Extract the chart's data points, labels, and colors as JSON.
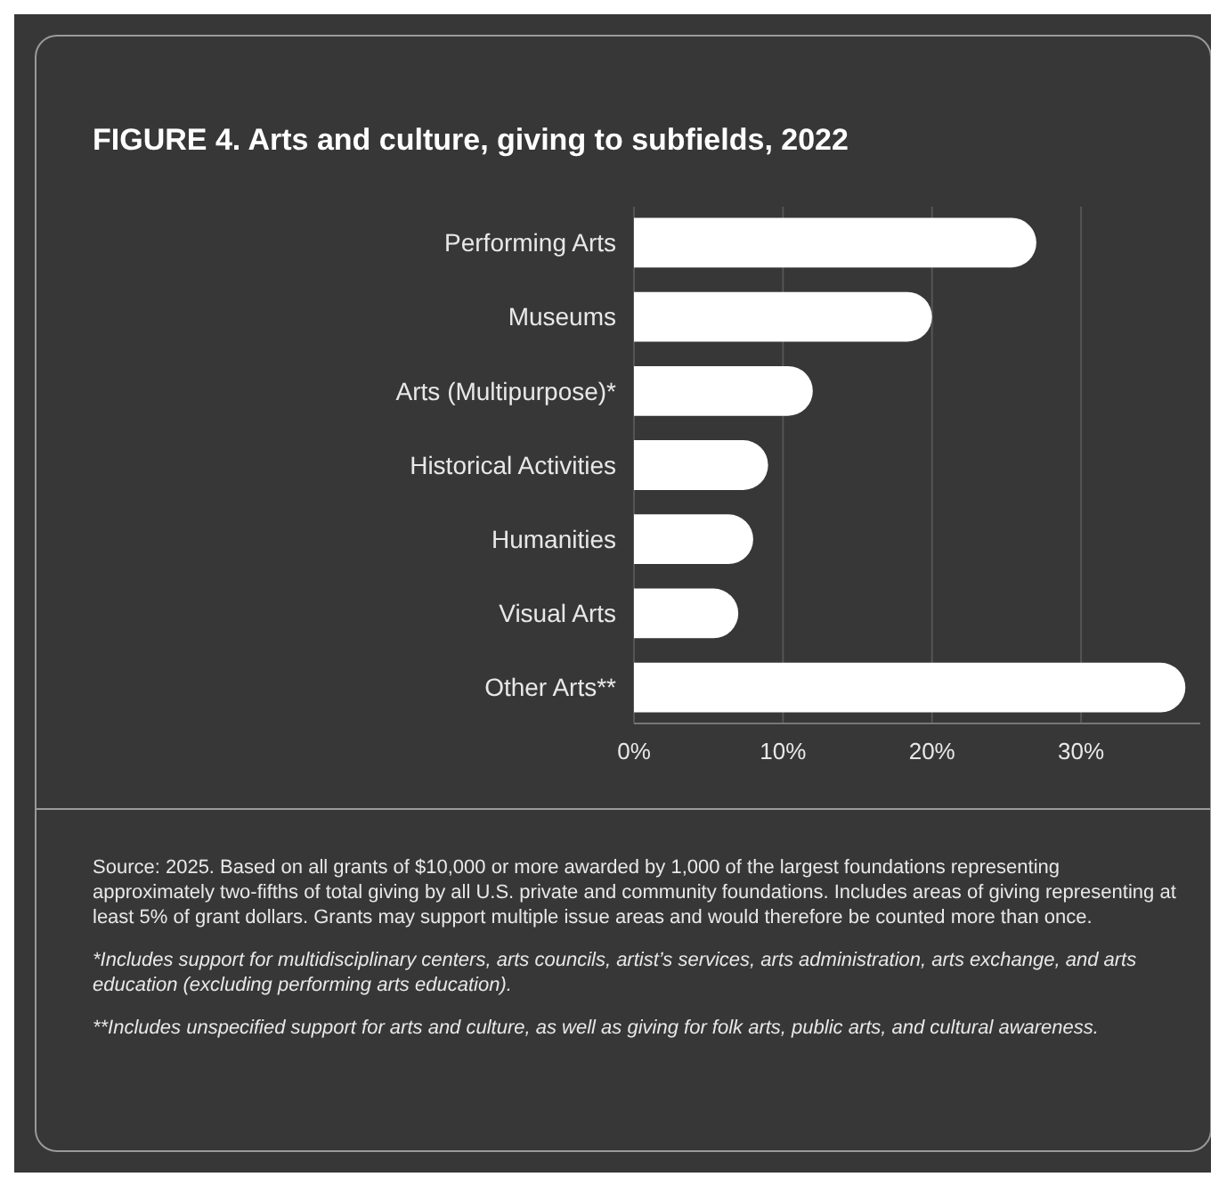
{
  "chart_data": {
    "type": "bar",
    "orientation": "horizontal",
    "title": "FIGURE 4. Arts and culture, giving to subfields, 2022",
    "categories": [
      "Performing Arts",
      "Museums",
      "Arts (Multipurpose)*",
      "Historical Activities",
      "Humanities",
      "Visual Arts",
      "Other Arts**"
    ],
    "values": [
      27,
      20,
      12,
      9,
      8,
      7,
      37
    ],
    "color": "#ffffff",
    "xlim": [
      0,
      38
    ],
    "xticks": [
      {
        "value": 0,
        "label": "0%"
      },
      {
        "value": 10,
        "label": "10%"
      },
      {
        "value": 20,
        "label": "20%"
      },
      {
        "value": 30,
        "label": "30%"
      }
    ],
    "grid": "x",
    "annotations": [
      "Source: 2025. Based on all grants of $10,000 or more awarded by 1,000 of the largest foundations representing approximately two-fifths of total giving by all U.S. private and community foundations. Includes areas of giving representing at least 5% of grant dollars. Grants may support multiple issue areas and would therefore be counted more than once.",
      "*Includes support for multidisciplinary centers, arts councils, artist’s services, arts administration, arts exchange, and arts education (excluding performing arts education).",
      "**Includes unspecified support for arts and culture, as well as giving for folk arts, public arts, and cultural awareness."
    ]
  }
}
